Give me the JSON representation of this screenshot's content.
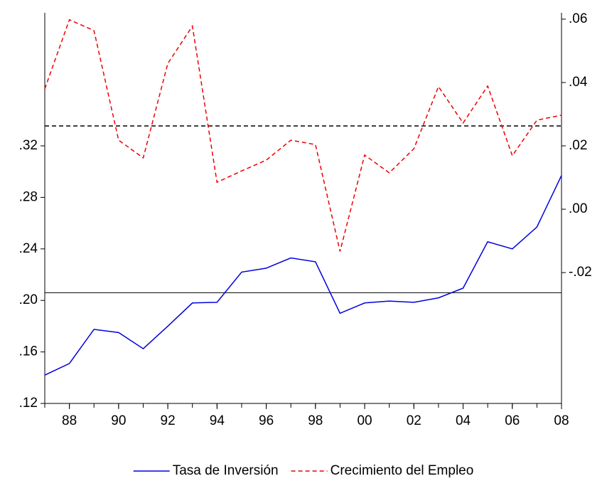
{
  "chart_data": {
    "type": "line",
    "x": [
      1987,
      1988,
      1989,
      1990,
      1991,
      1992,
      1993,
      1994,
      1995,
      1996,
      1997,
      1998,
      1999,
      2000,
      2001,
      2002,
      2003,
      2004,
      2005,
      2006,
      2007,
      2008
    ],
    "xlim": [
      1987,
      2008
    ],
    "xticks": [
      {
        "value": 1988,
        "label": "88"
      },
      {
        "value": 1990,
        "label": "90"
      },
      {
        "value": 1992,
        "label": "92"
      },
      {
        "value": 1994,
        "label": "94"
      },
      {
        "value": 1996,
        "label": "96"
      },
      {
        "value": 1998,
        "label": "98"
      },
      {
        "value": 2000,
        "label": "00"
      },
      {
        "value": 2002,
        "label": "02"
      },
      {
        "value": 2004,
        "label": "04"
      },
      {
        "value": 2006,
        "label": "06"
      },
      {
        "value": 2008,
        "label": "08"
      }
    ],
    "ylim": [
      0.12,
      0.4233
    ],
    "yticks": [
      {
        "value": 0.12,
        "label": ".12"
      },
      {
        "value": 0.16,
        "label": ".16"
      },
      {
        "value": 0.2,
        "label": ".20"
      },
      {
        "value": 0.24,
        "label": ".24"
      },
      {
        "value": 0.28,
        "label": ".28"
      },
      {
        "value": 0.32,
        "label": ".32"
      }
    ],
    "y2lim": [
      -0.0613,
      0.062
    ],
    "y2ticks": [
      {
        "value": -0.02,
        "label": "-.02"
      },
      {
        "value": 0.0,
        "label": ".00"
      },
      {
        "value": 0.02,
        "label": ".02"
      },
      {
        "value": 0.04,
        "label": ".04"
      },
      {
        "value": 0.06,
        "label": ".06"
      }
    ],
    "series": [
      {
        "name": "Tasa de Inversión",
        "color": "#0000dd",
        "style": "solid",
        "axis": "y",
        "values": [
          0.142,
          0.151,
          0.1775,
          0.175,
          0.1625,
          0.18,
          0.198,
          0.1985,
          0.222,
          0.225,
          0.233,
          0.23,
          0.19,
          0.198,
          0.1995,
          0.1985,
          0.202,
          0.2095,
          0.2455,
          0.24,
          0.257,
          0.297
        ]
      },
      {
        "name": "Crecimiento del Empleo",
        "color": "#ee0000",
        "style": "dashed",
        "axis": "y2",
        "values": [
          0.038,
          0.0598,
          0.0564,
          0.0218,
          0.0162,
          0.046,
          0.0578,
          0.0085,
          0.0121,
          0.0155,
          0.0218,
          0.0204,
          -0.0133,
          0.0171,
          0.0115,
          0.0191,
          0.0387,
          0.0272,
          0.0389,
          0.0169,
          0.0281,
          0.0297
        ]
      }
    ],
    "hlines": [
      {
        "value": 0.206,
        "axis": "y",
        "style": "solid",
        "color": "#000000"
      },
      {
        "value": 0.0263,
        "axis": "y2",
        "style": "dashed",
        "color": "#000000"
      }
    ],
    "legend": "bottom"
  }
}
